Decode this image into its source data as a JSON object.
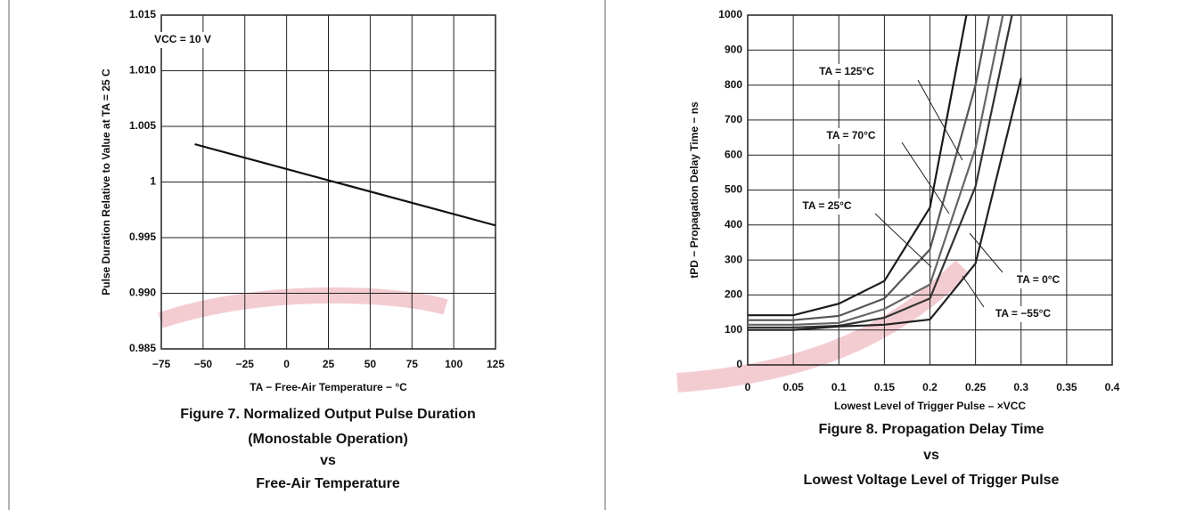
{
  "chart_data": [
    {
      "type": "line",
      "ylabel": "Pulse Duration Relative to Value at TA = 25 C",
      "xlabel": "TA − Free-Air Temperature − °C",
      "caption": [
        "Figure 7. Normalized Output Pulse Duration",
        "(Monostable Operation)",
        "vs",
        "Free-Air Temperature"
      ],
      "annotations": [
        "VCC = 10 V"
      ],
      "x": [
        -55,
        125
      ],
      "series": [
        {
          "name": "VCC = 10 V",
          "color": "#111111",
          "values": [
            1.0034,
            0.9961
          ]
        }
      ],
      "xlim": [
        -75,
        125
      ],
      "xticks": [
        {
          "value": -75,
          "label": "−75"
        },
        {
          "value": -50,
          "label": "−50"
        },
        {
          "value": -25,
          "label": "−25"
        },
        0,
        25,
        50,
        75,
        100,
        125
      ],
      "ylim": [
        0.985,
        1.015
      ],
      "yticks": [
        0.985,
        {
          "value": 0.99,
          "label": "0.990"
        },
        0.995,
        1,
        1.005,
        {
          "value": 1.01,
          "label": "1.010"
        },
        1.015
      ],
      "grid": true
    },
    {
      "type": "line",
      "ylabel": "tPD − Propagation Delay Time − ns",
      "xlabel": "Lowest Level of Trigger Pulse – ×VCC",
      "caption": [
        "Figure 8. Propagation Delay Time",
        "vs",
        "Lowest Voltage Level of Trigger Pulse"
      ],
      "series": [
        {
          "name": "TA = 125°C",
          "color": "#1a1a1a",
          "x": [
            0,
            0.05,
            0.1,
            0.15,
            0.2,
            0.24
          ],
          "values": [
            142,
            142,
            175,
            240,
            450,
            1000
          ]
        },
        {
          "name": "TA = 70°C",
          "color": "#555555",
          "x": [
            0,
            0.05,
            0.1,
            0.15,
            0.2,
            0.25,
            0.265
          ],
          "values": [
            128,
            128,
            140,
            190,
            330,
            800,
            1000
          ]
        },
        {
          "name": "TA = 25°C",
          "color": "#666666",
          "x": [
            0,
            0.05,
            0.1,
            0.15,
            0.2,
            0.25,
            0.28
          ],
          "values": [
            115,
            115,
            120,
            160,
            230,
            620,
            1000
          ]
        },
        {
          "name": "TA = 0°C",
          "color": "#333333",
          "x": [
            0,
            0.05,
            0.1,
            0.15,
            0.2,
            0.25,
            0.29
          ],
          "values": [
            107,
            107,
            112,
            135,
            190,
            510,
            1000
          ]
        },
        {
          "name": "TA = −55°C",
          "color": "#222222",
          "x": [
            0,
            0.05,
            0.1,
            0.15,
            0.2,
            0.25,
            0.3
          ],
          "values": [
            100,
            100,
            110,
            115,
            130,
            290,
            820
          ]
        }
      ],
      "xlim": [
        0,
        0.4
      ],
      "xticks": [
        0,
        0.05,
        0.1,
        0.15,
        0.2,
        0.25,
        0.3,
        0.35,
        0.4
      ],
      "ylim": [
        0,
        1000
      ],
      "yticks": [
        0,
        100,
        200,
        300,
        400,
        500,
        600,
        700,
        800,
        900,
        1000
      ],
      "grid": true
    }
  ]
}
